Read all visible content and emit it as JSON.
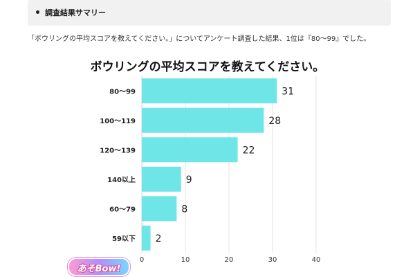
{
  "summary": {
    "title": "調査結果サマリー"
  },
  "lead_text": "「ボウリングの平均スコアを教えてください。」についてアンケート調査した結果、1位は『80〜99』でした。",
  "logo_text": "あそBow!",
  "colors": {
    "bar": "#6ee6e8",
    "grid": "#e3e3e3",
    "summary_bg": "#f1f1f1"
  },
  "chart_data": {
    "type": "bar",
    "orientation": "horizontal",
    "title": "ボウリングの平均スコアを教えてください。",
    "categories": [
      "80〜99",
      "100〜119",
      "120〜139",
      "140以上",
      "60〜79",
      "59以下"
    ],
    "values": [
      31,
      28,
      22,
      9,
      8,
      2
    ],
    "xlim": [
      0,
      40
    ],
    "xticks": [
      0,
      10,
      20,
      30,
      40
    ],
    "grid": true,
    "xlabel": "",
    "ylabel": ""
  }
}
